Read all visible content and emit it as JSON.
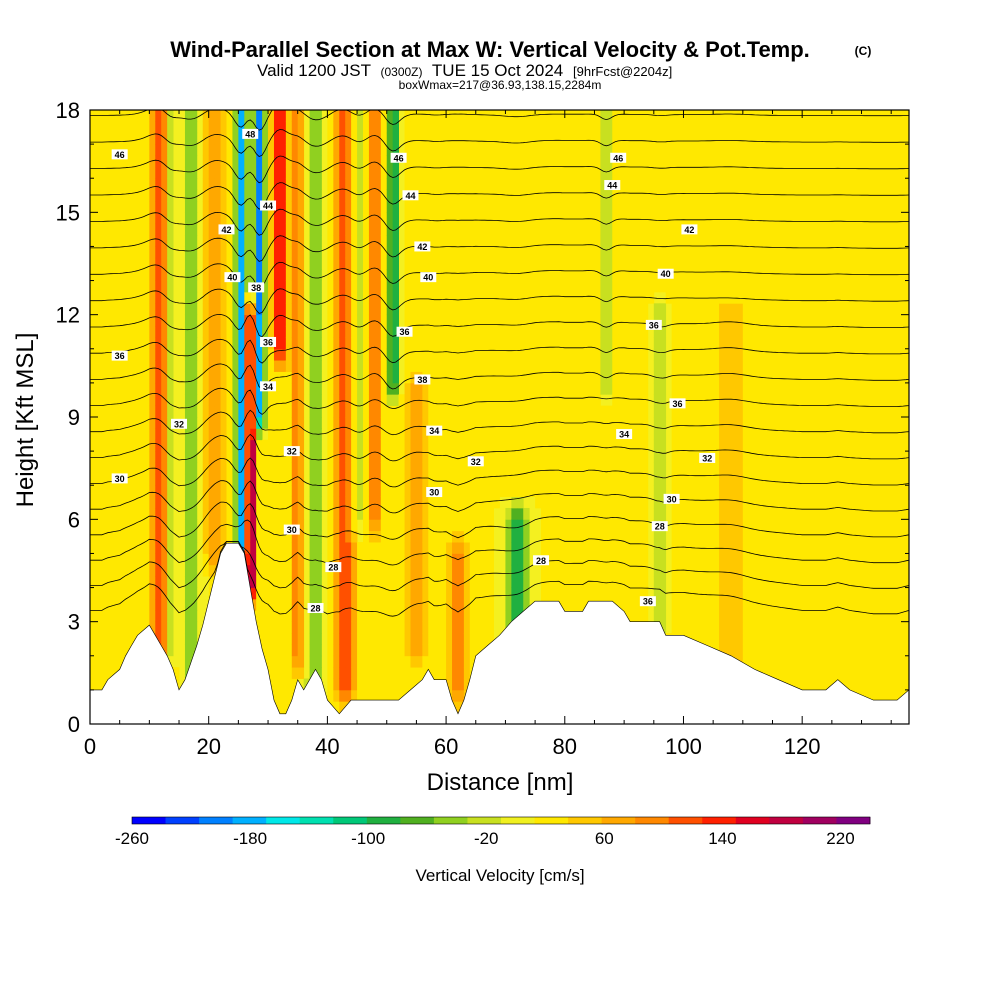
{
  "header": {
    "title": "Wind-Parallel Section at Max W: Vertical Velocity & Pot.Temp.",
    "copyright_mark": "(C)",
    "valid_prefix": "Valid 1200 JST",
    "valid_utc": "(0300Z)",
    "valid_date": "TUE 15 Oct 2024",
    "forecast_info": "[9hrFcst@2204z]",
    "boxwmax": "boxWmax=217@36.93,138.15,2284m"
  },
  "colors": {
    "background": "#ffffff",
    "terrain": "#ffffff",
    "contour": "#000000",
    "colorbar": [
      "#0000ff",
      "#0040ff",
      "#0080ff",
      "#00b0ff",
      "#00e8e8",
      "#00e0b0",
      "#00c878",
      "#20b040",
      "#50b020",
      "#90d020",
      "#c8e020",
      "#f0f020",
      "#ffe800",
      "#ffc800",
      "#ffa800",
      "#ff8800",
      "#ff5000",
      "#ff2000",
      "#e00020",
      "#c00040",
      "#a00060",
      "#800080"
    ]
  },
  "chart_data": {
    "type": "heatmap",
    "title": "Wind-Parallel Section at Max W: Vertical Velocity & Pot.Temp.",
    "xlabel": "Distance [nm]",
    "ylabel": "Height [Kft MSL]",
    "xlim": [
      0,
      138
    ],
    "ylim": [
      0,
      18
    ],
    "x_ticks": [
      "0",
      "20",
      "40",
      "60",
      "80",
      "100",
      "120"
    ],
    "y_ticks": [
      "0",
      "3",
      "6",
      "9",
      "12",
      "15",
      "18"
    ],
    "colorbar": {
      "label": "Vertical Velocity [cm/s]",
      "min": -260,
      "max": 240,
      "ticks": [
        "-260",
        "-180",
        "-100",
        "-20",
        "60",
        "140",
        "220"
      ]
    },
    "terrain_profile_kft": [
      [
        0,
        1.0
      ],
      [
        2,
        1.0
      ],
      [
        3,
        1.3
      ],
      [
        5,
        1.6
      ],
      [
        6,
        2.0
      ],
      [
        7,
        2.3
      ],
      [
        8,
        2.6
      ],
      [
        10,
        2.9
      ],
      [
        11,
        2.6
      ],
      [
        12,
        2.3
      ],
      [
        13,
        2.0
      ],
      [
        14,
        1.6
      ],
      [
        15,
        1.0
      ],
      [
        16,
        1.3
      ],
      [
        17,
        1.8
      ],
      [
        18,
        2.3
      ],
      [
        19,
        2.9
      ],
      [
        20,
        3.6
      ],
      [
        21,
        4.3
      ],
      [
        22,
        5.0
      ],
      [
        23,
        5.3
      ],
      [
        25,
        5.3
      ],
      [
        26,
        5.0
      ],
      [
        27,
        4.0
      ],
      [
        28,
        3.0
      ],
      [
        29,
        2.2
      ],
      [
        30,
        1.6
      ],
      [
        31,
        0.7
      ],
      [
        32,
        0.3
      ],
      [
        33,
        0.3
      ],
      [
        34,
        0.7
      ],
      [
        35,
        1.3
      ],
      [
        36,
        1.0
      ],
      [
        37,
        1.3
      ],
      [
        38,
        1.6
      ],
      [
        39,
        1.3
      ],
      [
        40,
        0.7
      ],
      [
        42,
        0.3
      ],
      [
        44,
        0.7
      ],
      [
        46,
        0.7
      ],
      [
        48,
        0.7
      ],
      [
        50,
        0.7
      ],
      [
        52,
        0.7
      ],
      [
        54,
        1.0
      ],
      [
        56,
        1.3
      ],
      [
        57,
        1.6
      ],
      [
        58,
        1.3
      ],
      [
        60,
        1.3
      ],
      [
        61,
        0.7
      ],
      [
        62,
        0.3
      ],
      [
        63,
        0.7
      ],
      [
        64,
        1.3
      ],
      [
        65,
        2.0
      ],
      [
        67,
        2.3
      ],
      [
        69,
        2.6
      ],
      [
        71,
        3.0
      ],
      [
        73,
        3.3
      ],
      [
        75,
        3.6
      ],
      [
        79,
        3.6
      ],
      [
        80,
        3.3
      ],
      [
        83,
        3.3
      ],
      [
        84,
        3.6
      ],
      [
        88,
        3.6
      ],
      [
        90,
        3.3
      ],
      [
        91,
        3.0
      ],
      [
        96,
        3.0
      ],
      [
        97,
        2.6
      ],
      [
        100,
        2.6
      ],
      [
        104,
        2.3
      ],
      [
        108,
        2.0
      ],
      [
        112,
        1.6
      ],
      [
        116,
        1.3
      ],
      [
        120,
        1.0
      ],
      [
        124,
        1.0
      ],
      [
        126,
        1.3
      ],
      [
        128,
        1.0
      ],
      [
        132,
        0.7
      ],
      [
        136,
        0.7
      ],
      [
        138,
        1.0
      ]
    ],
    "vertical_velocity_features": [
      {
        "x": 12,
        "w": 1.8,
        "amp": 110,
        "z0": 0,
        "z1": 18
      },
      {
        "x": 13.5,
        "w": 1.0,
        "amp": -90,
        "z0": 2,
        "z1": 18
      },
      {
        "x": 17,
        "w": 1.5,
        "amp": -60,
        "z0": 0,
        "z1": 18
      },
      {
        "x": 21,
        "w": 1.5,
        "amp": 70,
        "z0": 5,
        "z1": 18
      },
      {
        "x": 25.5,
        "w": 0.9,
        "amp": -200,
        "z0": 5,
        "z1": 18
      },
      {
        "x": 28.5,
        "w": 0.9,
        "amp": -220,
        "z0": 9,
        "z1": 18
      },
      {
        "x": 27,
        "w": 0.9,
        "amp": 217,
        "z0": 4,
        "z1": 12
      },
      {
        "x": 32,
        "w": 1.1,
        "amp": 160,
        "z0": 11,
        "z1": 18
      },
      {
        "x": 35,
        "w": 1.2,
        "amp": 80,
        "z0": 2,
        "z1": 18
      },
      {
        "x": 38,
        "w": 1.5,
        "amp": -70,
        "z0": 1,
        "z1": 18
      },
      {
        "x": 43,
        "w": 1.8,
        "amp": 100,
        "z0": 1,
        "z1": 18
      },
      {
        "x": 45,
        "w": 1.2,
        "amp": -60,
        "z0": 6,
        "z1": 18
      },
      {
        "x": 48,
        "w": 1.2,
        "amp": 90,
        "z0": 6,
        "z1": 18
      },
      {
        "x": 51,
        "w": 1.0,
        "amp": -120,
        "z0": 10,
        "z1": 18
      },
      {
        "x": 55,
        "w": 1.5,
        "amp": 60,
        "z0": 2,
        "z1": 10
      },
      {
        "x": 62,
        "w": 1.5,
        "amp": 80,
        "z0": 1,
        "z1": 5
      },
      {
        "x": 72,
        "w": 2.0,
        "amp": -100,
        "z0": 2,
        "z1": 6
      },
      {
        "x": 87,
        "w": 0.8,
        "amp": -70,
        "z0": 10,
        "z1": 18
      },
      {
        "x": 96,
        "w": 1.0,
        "amp": -50,
        "z0": 3,
        "z1": 12
      },
      {
        "x": 108,
        "w": 2.5,
        "amp": 40,
        "z0": 2,
        "z1": 12
      }
    ],
    "potential_temperature_labels": [
      {
        "x": 5,
        "z": 16.7,
        "label": "46"
      },
      {
        "x": 27,
        "z": 17.3,
        "label": "48"
      },
      {
        "x": 52,
        "z": 16.6,
        "label": "46"
      },
      {
        "x": 89,
        "z": 16.6,
        "label": "46"
      },
      {
        "x": 30,
        "z": 15.2,
        "label": "44"
      },
      {
        "x": 54,
        "z": 15.5,
        "label": "44"
      },
      {
        "x": 88,
        "z": 15.8,
        "label": "44"
      },
      {
        "x": 23,
        "z": 14.5,
        "label": "42"
      },
      {
        "x": 56,
        "z": 14.0,
        "label": "42"
      },
      {
        "x": 101,
        "z": 14.5,
        "label": "42"
      },
      {
        "x": 24,
        "z": 13.1,
        "label": "40"
      },
      {
        "x": 57,
        "z": 13.1,
        "label": "40"
      },
      {
        "x": 97,
        "z": 13.2,
        "label": "40"
      },
      {
        "x": 28,
        "z": 12.8,
        "label": "38"
      },
      {
        "x": 30,
        "z": 11.2,
        "label": "36"
      },
      {
        "x": 53,
        "z": 11.5,
        "label": "36"
      },
      {
        "x": 95,
        "z": 11.7,
        "label": "36"
      },
      {
        "x": 5,
        "z": 10.8,
        "label": "36"
      },
      {
        "x": 30,
        "z": 9.9,
        "label": "34"
      },
      {
        "x": 56,
        "z": 10.1,
        "label": "38"
      },
      {
        "x": 99,
        "z": 9.4,
        "label": "36"
      },
      {
        "x": 15,
        "z": 8.8,
        "label": "32"
      },
      {
        "x": 58,
        "z": 8.6,
        "label": "34"
      },
      {
        "x": 90,
        "z": 8.5,
        "label": "34"
      },
      {
        "x": 34,
        "z": 8.0,
        "label": "32"
      },
      {
        "x": 65,
        "z": 7.7,
        "label": "32"
      },
      {
        "x": 104,
        "z": 7.8,
        "label": "32"
      },
      {
        "x": 5,
        "z": 7.2,
        "label": "30"
      },
      {
        "x": 58,
        "z": 6.8,
        "label": "30"
      },
      {
        "x": 98,
        "z": 6.6,
        "label": "30"
      },
      {
        "x": 34,
        "z": 5.7,
        "label": "30"
      },
      {
        "x": 96,
        "z": 5.8,
        "label": "28"
      },
      {
        "x": 41,
        "z": 4.6,
        "label": "28"
      },
      {
        "x": 76,
        "z": 4.8,
        "label": "28"
      },
      {
        "x": 38,
        "z": 3.4,
        "label": "28"
      },
      {
        "x": 94,
        "z": 3.6,
        "label": "36"
      }
    ]
  }
}
